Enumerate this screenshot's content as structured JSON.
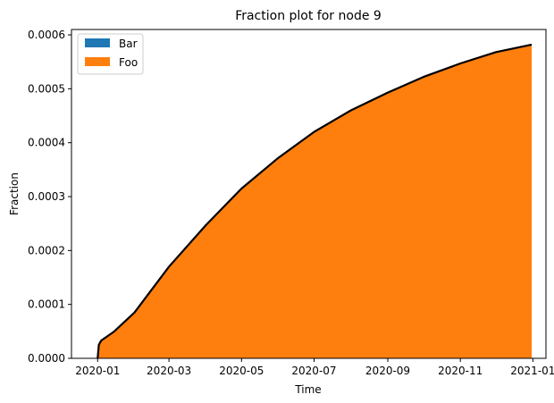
{
  "chart_data": {
    "type": "area",
    "title": "Fraction plot for node 9",
    "xlabel": "Time",
    "ylabel": "Fraction",
    "x_type": "date",
    "xlim": [
      "2019-12-10",
      "2021-01-12"
    ],
    "ylim": [
      0,
      0.00061
    ],
    "x_ticks": [
      "2020-01",
      "2020-03",
      "2020-05",
      "2020-07",
      "2020-09",
      "2020-11",
      "2021-01"
    ],
    "y_ticks": [
      "0.0000",
      "0.0001",
      "0.0002",
      "0.0003",
      "0.0004",
      "0.0005",
      "0.0006"
    ],
    "grid": false,
    "legend": {
      "location": "upper-left"
    },
    "series": [
      {
        "name": "Bar",
        "color": "#1f77b4",
        "points": [
          [
            "2020-01-01",
            0
          ],
          [
            "2020-12-31",
            0
          ]
        ]
      },
      {
        "name": "Foo",
        "color": "#ff7f0e",
        "points": [
          [
            "2020-01-01",
            0
          ],
          [
            "2020-01-02",
            2.5e-05
          ],
          [
            "2020-01-04",
            3.3e-05
          ],
          [
            "2020-01-15",
            5e-05
          ],
          [
            "2020-02-01",
            8.5e-05
          ],
          [
            "2020-03-01",
            0.00017
          ],
          [
            "2020-04-01",
            0.000247
          ],
          [
            "2020-05-01",
            0.000315
          ],
          [
            "2020-06-01",
            0.000372
          ],
          [
            "2020-07-01",
            0.00042
          ],
          [
            "2020-08-01",
            0.00046
          ],
          [
            "2020-09-01",
            0.000493
          ],
          [
            "2020-10-01",
            0.000522
          ],
          [
            "2020-11-01",
            0.000547
          ],
          [
            "2020-12-01",
            0.000568
          ],
          [
            "2020-12-31",
            0.000582
          ]
        ]
      }
    ],
    "total_line_color": "#000000"
  }
}
